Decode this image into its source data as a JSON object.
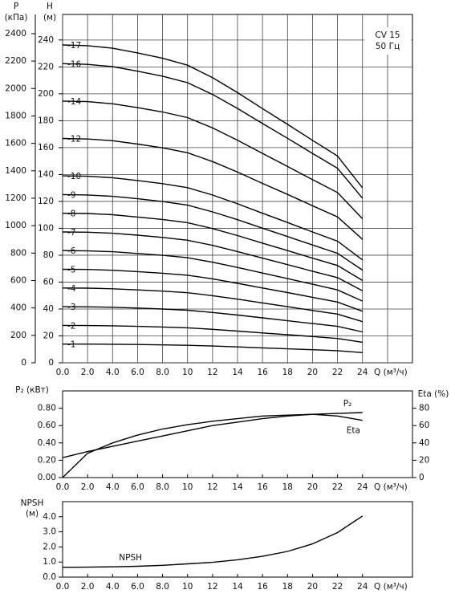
{
  "chart_data": [
    {
      "type": "line",
      "ylabel": "H",
      "ylabel_unit": "(м)",
      "y2label": "P",
      "y2label_unit": "(кПа)",
      "y2_side": "left",
      "xlabel": "Q (м³/ч)",
      "annotations": [
        "CV 15",
        "50 Гц"
      ],
      "grid": true,
      "x": [
        0,
        2,
        4,
        6,
        8,
        10,
        12,
        14,
        16,
        18,
        20,
        22,
        24
      ],
      "xlim": [
        0,
        28
      ],
      "xticks": [
        {
          "value": 0,
          "label": "0.0"
        },
        {
          "value": 2,
          "label": "2.0"
        },
        {
          "value": 4,
          "label": "4.0"
        },
        {
          "value": 6,
          "label": "6.0"
        },
        {
          "value": 8,
          "label": "8.0"
        },
        10,
        12,
        14,
        16,
        18,
        20,
        22,
        24
      ],
      "ylim": [
        0,
        259
      ],
      "yticks": [
        0,
        20,
        40,
        60,
        80,
        100,
        120,
        140,
        160,
        180,
        200,
        220,
        240
      ],
      "y2lim": [
        0,
        2540
      ],
      "y2ticks": [
        0,
        200,
        400,
        600,
        800,
        1000,
        1200,
        1400,
        1600,
        1800,
        2000,
        2200,
        2400
      ],
      "series": [
        {
          "name": "-1",
          "color": "#000",
          "values": [
            13.9,
            13.9,
            13.8,
            13.6,
            13.3,
            13.0,
            12.5,
            11.8,
            11.1,
            10.4,
            9.7,
            9.0,
            7.6
          ]
        },
        {
          "name": "-2",
          "color": "#000",
          "values": [
            27.8,
            27.7,
            27.5,
            27.1,
            26.6,
            26.0,
            24.9,
            23.6,
            22.2,
            20.9,
            19.5,
            18.1,
            15.3
          ]
        },
        {
          "name": "-3",
          "color": "#000",
          "values": [
            41.7,
            41.6,
            41.3,
            40.7,
            40.0,
            39.1,
            37.4,
            35.5,
            33.4,
            31.3,
            29.2,
            27.1,
            23.0
          ]
        },
        {
          "name": "-4",
          "color": "#000",
          "values": [
            55.6,
            55.5,
            55.0,
            54.2,
            53.3,
            52.1,
            49.9,
            47.3,
            44.5,
            41.7,
            38.9,
            36.2,
            30.6
          ]
        },
        {
          "name": "-5",
          "color": "#000",
          "values": [
            69.5,
            69.4,
            68.8,
            67.8,
            66.6,
            65.1,
            62.4,
            59.1,
            55.6,
            52.2,
            48.7,
            45.2,
            38.3
          ]
        },
        {
          "name": "-6",
          "color": "#000",
          "values": [
            83.4,
            83.2,
            82.6,
            81.3,
            79.9,
            78.1,
            74.8,
            70.9,
            66.7,
            62.6,
            58.4,
            54.2,
            45.9
          ]
        },
        {
          "name": "-7",
          "color": "#000",
          "values": [
            97.3,
            97.1,
            96.3,
            94.9,
            93.2,
            91.1,
            87.3,
            82.7,
            77.8,
            73.0,
            68.1,
            63.3,
            53.6
          ]
        },
        {
          "name": "-8",
          "color": "#000",
          "values": [
            111.2,
            111.0,
            110.1,
            108.4,
            106.6,
            104.2,
            99.8,
            94.6,
            89.0,
            83.4,
            77.8,
            72.3,
            61.2
          ]
        },
        {
          "name": "-9",
          "color": "#000",
          "values": [
            125.1,
            124.8,
            123.8,
            122.0,
            119.9,
            117.2,
            112.2,
            106.4,
            100.1,
            93.9,
            87.6,
            81.4,
            68.9
          ]
        },
        {
          "name": "-10",
          "color": "#000",
          "values": [
            139.0,
            138.7,
            137.6,
            135.5,
            133.2,
            130.2,
            124.7,
            118.2,
            111.2,
            104.3,
            97.3,
            90.4,
            76.5
          ]
        },
        {
          "name": "-12",
          "color": "#000",
          "values": [
            166.8,
            166.4,
            165.1,
            162.6,
            159.8,
            156.2,
            149.6,
            141.8,
            133.4,
            125.2,
            116.8,
            108.5,
            91.8
          ]
        },
        {
          "name": "-14",
          "color": "#000",
          "values": [
            194.6,
            194.2,
            192.6,
            189.7,
            186.5,
            182.3,
            174.6,
            165.5,
            155.7,
            146.0,
            136.2,
            126.6,
            107.1
          ]
        },
        {
          "name": "-16",
          "color": "#000",
          "values": [
            222.4,
            221.9,
            220.2,
            216.8,
            213.1,
            208.3,
            199.5,
            189.1,
            177.9,
            166.9,
            155.7,
            144.6,
            122.4
          ]
        },
        {
          "name": "-17",
          "color": "#000",
          "values": [
            236.3,
            235.8,
            233.9,
            230.4,
            226.4,
            221.3,
            212.0,
            200.9,
            189.0,
            177.3,
            165.4,
            153.7,
            130.1
          ]
        }
      ]
    },
    {
      "type": "line",
      "ylabel": "P₂ (кВт)",
      "y2label": "Eta (%)",
      "y2_side": "right",
      "xlabel": "Q (м³/ч)",
      "grid": false,
      "x": [
        0,
        2,
        4,
        6,
        8,
        10,
        12,
        14,
        16,
        18,
        20,
        22,
        24
      ],
      "xlim": [
        0,
        28
      ],
      "xticks": [
        {
          "value": 0,
          "label": "0.0"
        },
        {
          "value": 2,
          "label": "2.0"
        },
        {
          "value": 4,
          "label": "4.0"
        },
        {
          "value": 6,
          "label": "6.0"
        },
        {
          "value": 8,
          "label": "8.0"
        },
        10,
        12,
        14,
        16,
        18,
        20,
        22,
        24
      ],
      "ylim": [
        0,
        1.0
      ],
      "yticks": [
        {
          "value": 0,
          "label": "0.00"
        },
        {
          "value": 0.2,
          "label": "0.20"
        },
        {
          "value": 0.4,
          "label": "0.40"
        },
        {
          "value": 0.6,
          "label": "0.60"
        },
        {
          "value": 0.8,
          "label": "0.80"
        }
      ],
      "y2lim": [
        0,
        100
      ],
      "y2ticks": [
        0,
        20,
        40,
        60,
        80
      ],
      "series": [
        {
          "name": "P₂",
          "color": "#000",
          "values": [
            0.23,
            0.3,
            0.36,
            0.42,
            0.48,
            0.54,
            0.6,
            0.64,
            0.68,
            0.71,
            0.73,
            0.74,
            0.75
          ]
        },
        {
          "name": "Eta",
          "color": "#000",
          "axis": "y2",
          "values": [
            0,
            28,
            40,
            49,
            56,
            61,
            65,
            68,
            71,
            72,
            73,
            71,
            66
          ]
        }
      ]
    },
    {
      "type": "line",
      "ylabel": "NPSH",
      "ylabel_unit": "(м)",
      "xlabel": "Q (м³/ч)",
      "grid": false,
      "x": [
        0,
        2,
        4,
        6,
        8,
        10,
        12,
        14,
        16,
        18,
        20,
        22,
        24
      ],
      "xlim": [
        0,
        28
      ],
      "xticks": [
        {
          "value": 0,
          "label": "0.0"
        },
        {
          "value": 2,
          "label": "2.0"
        },
        {
          "value": 4,
          "label": "4.0"
        },
        {
          "value": 6,
          "label": "6.0"
        },
        {
          "value": 8,
          "label": "8.0"
        },
        10,
        12,
        14,
        16,
        18,
        20,
        22,
        24
      ],
      "ylim": [
        0,
        5.0
      ],
      "yticks": [
        {
          "value": 0,
          "label": "0.0"
        },
        {
          "value": 1,
          "label": "1.0"
        },
        {
          "value": 2,
          "label": "2.0"
        },
        {
          "value": 3,
          "label": "3.0"
        },
        {
          "value": 4,
          "label": "4.0"
        }
      ],
      "series": [
        {
          "name": "NPSH",
          "color": "#000",
          "values": [
            0.65,
            0.66,
            0.68,
            0.72,
            0.78,
            0.88,
            0.98,
            1.15,
            1.38,
            1.7,
            2.2,
            2.95,
            4.05
          ]
        }
      ]
    }
  ]
}
